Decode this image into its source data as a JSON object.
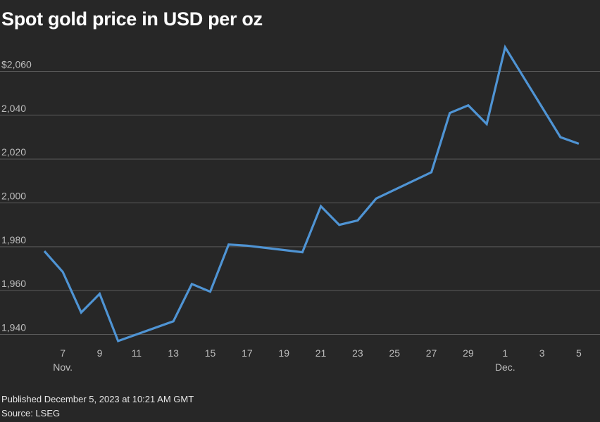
{
  "chart_data": {
    "type": "line",
    "title": "Spot gold price in USD per oz",
    "xlabel": "",
    "ylabel": "",
    "ylim": [
      1935,
      2072
    ],
    "grid": true,
    "y_ticks": [
      {
        "value": 2060,
        "label": "$2,060"
      },
      {
        "value": 2040,
        "label": "2,040"
      },
      {
        "value": 2020,
        "label": "2,020"
      },
      {
        "value": 2000,
        "label": "2,000"
      },
      {
        "value": 1980,
        "label": "1,980"
      },
      {
        "value": 1960,
        "label": "1,960"
      },
      {
        "value": 1940,
        "label": "1,940"
      }
    ],
    "x_ticks": [
      {
        "date": "2023-11-07",
        "label": "7",
        "sublabel": "Nov."
      },
      {
        "date": "2023-11-09",
        "label": "9",
        "sublabel": ""
      },
      {
        "date": "2023-11-11",
        "label": "11",
        "sublabel": ""
      },
      {
        "date": "2023-11-13",
        "label": "13",
        "sublabel": ""
      },
      {
        "date": "2023-11-15",
        "label": "15",
        "sublabel": ""
      },
      {
        "date": "2023-11-17",
        "label": "17",
        "sublabel": ""
      },
      {
        "date": "2023-11-19",
        "label": "19",
        "sublabel": ""
      },
      {
        "date": "2023-11-21",
        "label": "21",
        "sublabel": ""
      },
      {
        "date": "2023-11-23",
        "label": "23",
        "sublabel": ""
      },
      {
        "date": "2023-11-25",
        "label": "25",
        "sublabel": ""
      },
      {
        "date": "2023-11-27",
        "label": "27",
        "sublabel": ""
      },
      {
        "date": "2023-11-29",
        "label": "29",
        "sublabel": ""
      },
      {
        "date": "2023-12-01",
        "label": "1",
        "sublabel": "Dec."
      },
      {
        "date": "2023-12-03",
        "label": "3",
        "sublabel": ""
      },
      {
        "date": "2023-12-05",
        "label": "5",
        "sublabel": ""
      }
    ],
    "series": [
      {
        "color": "#4f94d4",
        "points": [
          {
            "x": "2023-11-06",
            "y": 1978
          },
          {
            "x": "2023-11-07",
            "y": 1968.5
          },
          {
            "x": "2023-11-08",
            "y": 1950
          },
          {
            "x": "2023-11-09",
            "y": 1958.5
          },
          {
            "x": "2023-11-10",
            "y": 1937
          },
          {
            "x": "2023-11-13",
            "y": 1946
          },
          {
            "x": "2023-11-14",
            "y": 1963
          },
          {
            "x": "2023-11-15",
            "y": 1959.5
          },
          {
            "x": "2023-11-16",
            "y": 1981
          },
          {
            "x": "2023-11-17",
            "y": 1980.5
          },
          {
            "x": "2023-11-20",
            "y": 1977.5
          },
          {
            "x": "2023-11-21",
            "y": 1998.5
          },
          {
            "x": "2023-11-22",
            "y": 1990
          },
          {
            "x": "2023-11-23",
            "y": 1992
          },
          {
            "x": "2023-11-24",
            "y": 2002
          },
          {
            "x": "2023-11-27",
            "y": 2014
          },
          {
            "x": "2023-11-28",
            "y": 2041
          },
          {
            "x": "2023-11-29",
            "y": 2044.5
          },
          {
            "x": "2023-11-30",
            "y": 2036
          },
          {
            "x": "2023-12-01",
            "y": 2071
          },
          {
            "x": "2023-12-04",
            "y": 2030
          },
          {
            "x": "2023-12-05",
            "y": 2027
          }
        ]
      }
    ]
  },
  "footer": {
    "published": "Published December 5, 2023 at 10:21 AM GMT",
    "source": "Source: LSEG"
  }
}
